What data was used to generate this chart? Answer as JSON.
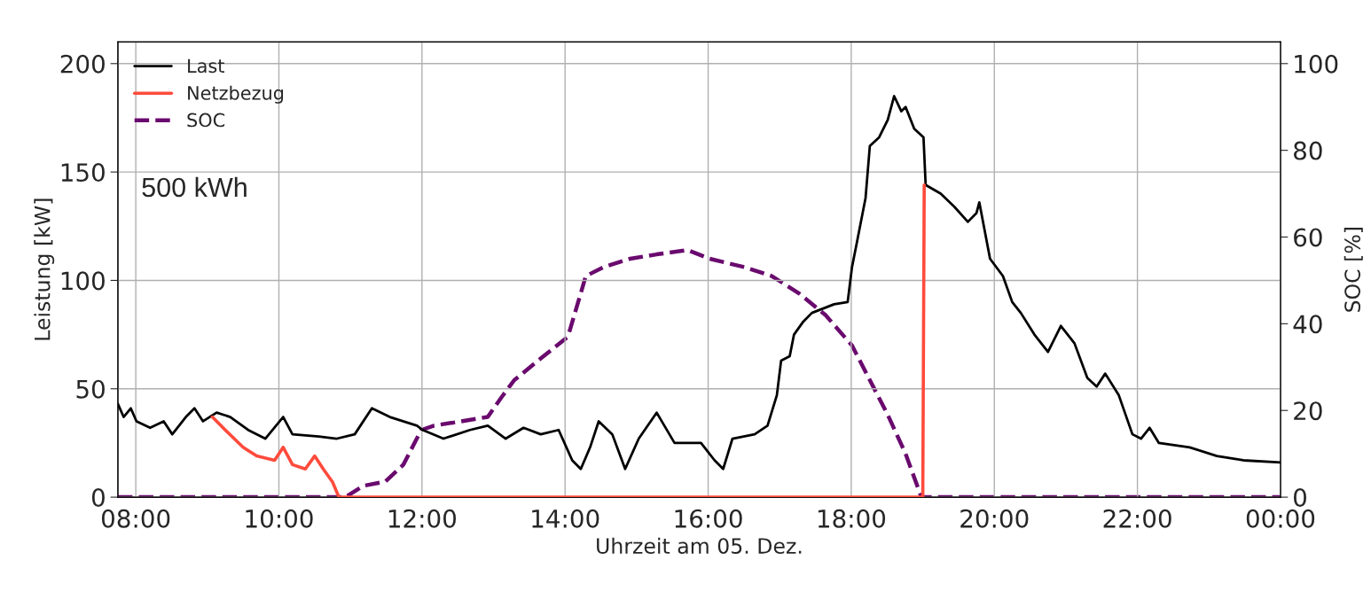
{
  "chart_data": {
    "type": "line",
    "xlabel": "Uhrzeit am 05. Dez.",
    "ylabel": "Leistung [kW]",
    "y2label": "SOC [%]",
    "annotations": [
      "500 kWh"
    ],
    "xlim": [
      7.75,
      24
    ],
    "xticks": [
      {
        "value": 8,
        "label": "08:00"
      },
      {
        "value": 10,
        "label": "10:00"
      },
      {
        "value": 12,
        "label": "12:00"
      },
      {
        "value": 14,
        "label": "14:00"
      },
      {
        "value": 16,
        "label": "16:00"
      },
      {
        "value": 18,
        "label": "18:00"
      },
      {
        "value": 20,
        "label": "20:00"
      },
      {
        "value": 22,
        "label": "22:00"
      },
      {
        "value": 24,
        "label": "00:00"
      }
    ],
    "ylim": [
      0,
      210
    ],
    "yticks": [
      0,
      50,
      100,
      150,
      200
    ],
    "y2lim": [
      0,
      105
    ],
    "y2ticks": [
      0,
      20,
      40,
      60,
      80,
      100
    ],
    "grid": true,
    "legend": "top left",
    "series": [
      {
        "name": "Last",
        "color": "#000000",
        "line_style": "solid",
        "x": [
          7.75,
          7.83,
          7.93,
          8.01,
          8.2,
          8.39,
          8.51,
          8.7,
          8.82,
          8.94,
          9.13,
          9.32,
          9.57,
          9.81,
          10.06,
          10.19,
          10.56,
          10.81,
          11.06,
          11.3,
          11.55,
          11.93,
          12.01,
          12.3,
          12.67,
          12.92,
          13.17,
          13.42,
          13.66,
          13.91,
          14.1,
          14.22,
          14.35,
          14.47,
          14.66,
          14.84,
          15.03,
          15.28,
          15.53,
          15.9,
          16.09,
          16.21,
          16.34,
          16.65,
          16.83,
          16.96,
          17.02,
          17.14,
          17.2,
          17.33,
          17.45,
          17.76,
          17.95,
          18.01,
          18.07,
          18.2,
          18.26,
          18.39,
          18.51,
          18.6,
          18.7,
          18.76,
          18.88,
          19.01,
          19.04,
          19.25,
          19.44,
          19.63,
          19.75,
          19.79,
          19.94,
          20.12,
          20.25,
          20.37,
          20.56,
          20.75,
          20.93,
          21.12,
          21.3,
          21.43,
          21.55,
          21.74,
          21.93,
          22.05,
          22.17,
          22.3,
          22.73,
          23.11,
          23.48,
          24
        ],
        "values": [
          43,
          37,
          41,
          35,
          32,
          35,
          29,
          37,
          41,
          35,
          39,
          37,
          31,
          27,
          37,
          29,
          28,
          27,
          29,
          41,
          37,
          33,
          31,
          27,
          31,
          33,
          27,
          32,
          29,
          31,
          17,
          13,
          23,
          35,
          29,
          13,
          27,
          39,
          25,
          25,
          17,
          13,
          27,
          29,
          33,
          47,
          63,
          65,
          75,
          81,
          85,
          89,
          90,
          106,
          116,
          138,
          162,
          166,
          174,
          185,
          178,
          180,
          170,
          166,
          144,
          140,
          134,
          127,
          131,
          136,
          110,
          102,
          90,
          85,
          75,
          67,
          79,
          71,
          55,
          51,
          57,
          47,
          29,
          27,
          32,
          25,
          23,
          19,
          17,
          16
        ]
      },
      {
        "name": "Netzbezug",
        "color": "#ff4b3c",
        "line_style": "solid",
        "x": [
          9.07,
          9.25,
          9.5,
          9.69,
          9.94,
          10.06,
          10.19,
          10.37,
          10.5,
          10.62,
          10.75,
          10.84,
          19.0,
          19.02
        ],
        "values": [
          37,
          31,
          23,
          19,
          17,
          23,
          15,
          13,
          19,
          13,
          7,
          0,
          0,
          144
        ]
      },
      {
        "name": "SOC",
        "color": "#6a0a6e",
        "line_style": "dashed",
        "axis": "y2",
        "x": [
          7.75,
          10.93,
          11.18,
          11.49,
          11.74,
          11.99,
          12.17,
          12.55,
          12.92,
          13.11,
          13.29,
          13.66,
          14.04,
          14.29,
          14.53,
          14.91,
          15.28,
          15.71,
          16.02,
          16.52,
          16.89,
          17.27,
          17.64,
          18.01,
          18.26,
          18.51,
          18.76,
          18.98,
          24
        ],
        "values": [
          0,
          0,
          2.6,
          3.6,
          7.5,
          15.5,
          16.5,
          17.5,
          18.5,
          23,
          27,
          32,
          37,
          51,
          53,
          55,
          56,
          57,
          55,
          53,
          51,
          47,
          42,
          35,
          27,
          19,
          10,
          0,
          0
        ]
      }
    ]
  }
}
